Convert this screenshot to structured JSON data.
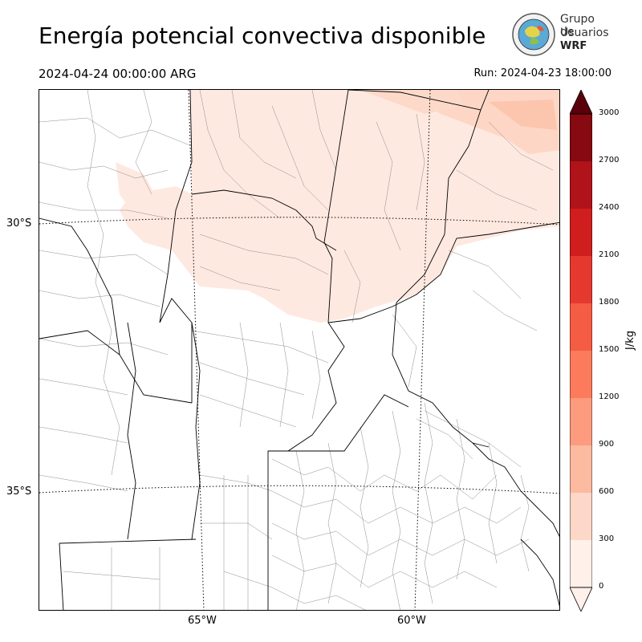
{
  "header": {
    "title": "Energía potencial convectiva disponible",
    "valid_time": "2024-04-24 00:00:00 ARG",
    "run_time": "Run: 2024-04-23 18:00:00"
  },
  "logo": {
    "line1": "Grupo de",
    "line2": "Usuarios",
    "line3": "WRF"
  },
  "map": {
    "variable": "CAPE",
    "lat_labels": [
      "30°S",
      "35°S"
    ],
    "lon_labels": [
      "65°W",
      "60°W"
    ],
    "colors": {
      "border": "#000000",
      "department_lines": "#888888",
      "graticule": "#000000",
      "field_low": "#fee9e0",
      "field_mid": "#fdd0bd"
    }
  },
  "colorbar": {
    "unit": "J/kg",
    "ticks": [
      "0",
      "300",
      "600",
      "900",
      "1200",
      "1500",
      "1800",
      "2100",
      "2400",
      "2700",
      "3000"
    ],
    "colors": [
      "#fff0ea",
      "#fdd7c7",
      "#fcbaa0",
      "#fc9b7d",
      "#fb7b5c",
      "#f45c43",
      "#e53930",
      "#d01e1e",
      "#b0131a",
      "#870911",
      "#5a000a"
    ]
  }
}
